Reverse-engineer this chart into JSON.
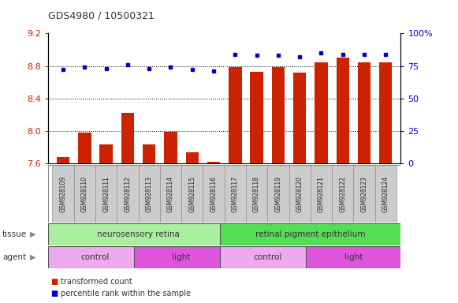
{
  "title": "GDS4980 / 10500321",
  "samples": [
    "GSM928109",
    "GSM928110",
    "GSM928111",
    "GSM928112",
    "GSM928113",
    "GSM928114",
    "GSM928115",
    "GSM928116",
    "GSM928117",
    "GSM928118",
    "GSM928119",
    "GSM928120",
    "GSM928121",
    "GSM928122",
    "GSM928123",
    "GSM928124"
  ],
  "bar_values": [
    7.68,
    7.98,
    7.84,
    8.22,
    7.84,
    7.99,
    7.74,
    7.62,
    8.79,
    8.73,
    8.79,
    8.72,
    8.84,
    8.9,
    8.84,
    8.84
  ],
  "dot_values": [
    72,
    74,
    73,
    76,
    73,
    74,
    72,
    71,
    84,
    83,
    83,
    82,
    85,
    84,
    84,
    84
  ],
  "ylim_left": [
    7.6,
    9.2
  ],
  "ylim_right": [
    0,
    100
  ],
  "yticks_left": [
    7.6,
    8.0,
    8.4,
    8.8,
    9.2
  ],
  "yticks_right": [
    0,
    25,
    50,
    75,
    100
  ],
  "bar_color": "#cc2200",
  "dot_color": "#0000cc",
  "bar_bottom": 7.6,
  "tissue_groups": [
    {
      "label": "neurosensory retina",
      "start": 0,
      "end": 8,
      "color": "#aaeea0"
    },
    {
      "label": "retinal pigment epithelium",
      "start": 8,
      "end": 16,
      "color": "#55dd55"
    }
  ],
  "agent_groups": [
    {
      "label": "control",
      "start": 0,
      "end": 4,
      "color": "#eeaaee"
    },
    {
      "label": "light",
      "start": 4,
      "end": 8,
      "color": "#dd55dd"
    },
    {
      "label": "control",
      "start": 8,
      "end": 12,
      "color": "#eeaaee"
    },
    {
      "label": "light",
      "start": 12,
      "end": 16,
      "color": "#dd55dd"
    }
  ],
  "legend_items": [
    {
      "label": "transformed count",
      "color": "#cc2200"
    },
    {
      "label": "percentile rank within the sample",
      "color": "#0000cc"
    }
  ],
  "grid_color": "#000000",
  "bg_color": "#ffffff",
  "tick_label_color_left": "#cc2200",
  "tick_label_color_right": "#0000cc",
  "sample_box_color": "#cccccc",
  "sample_box_edge": "#999999"
}
